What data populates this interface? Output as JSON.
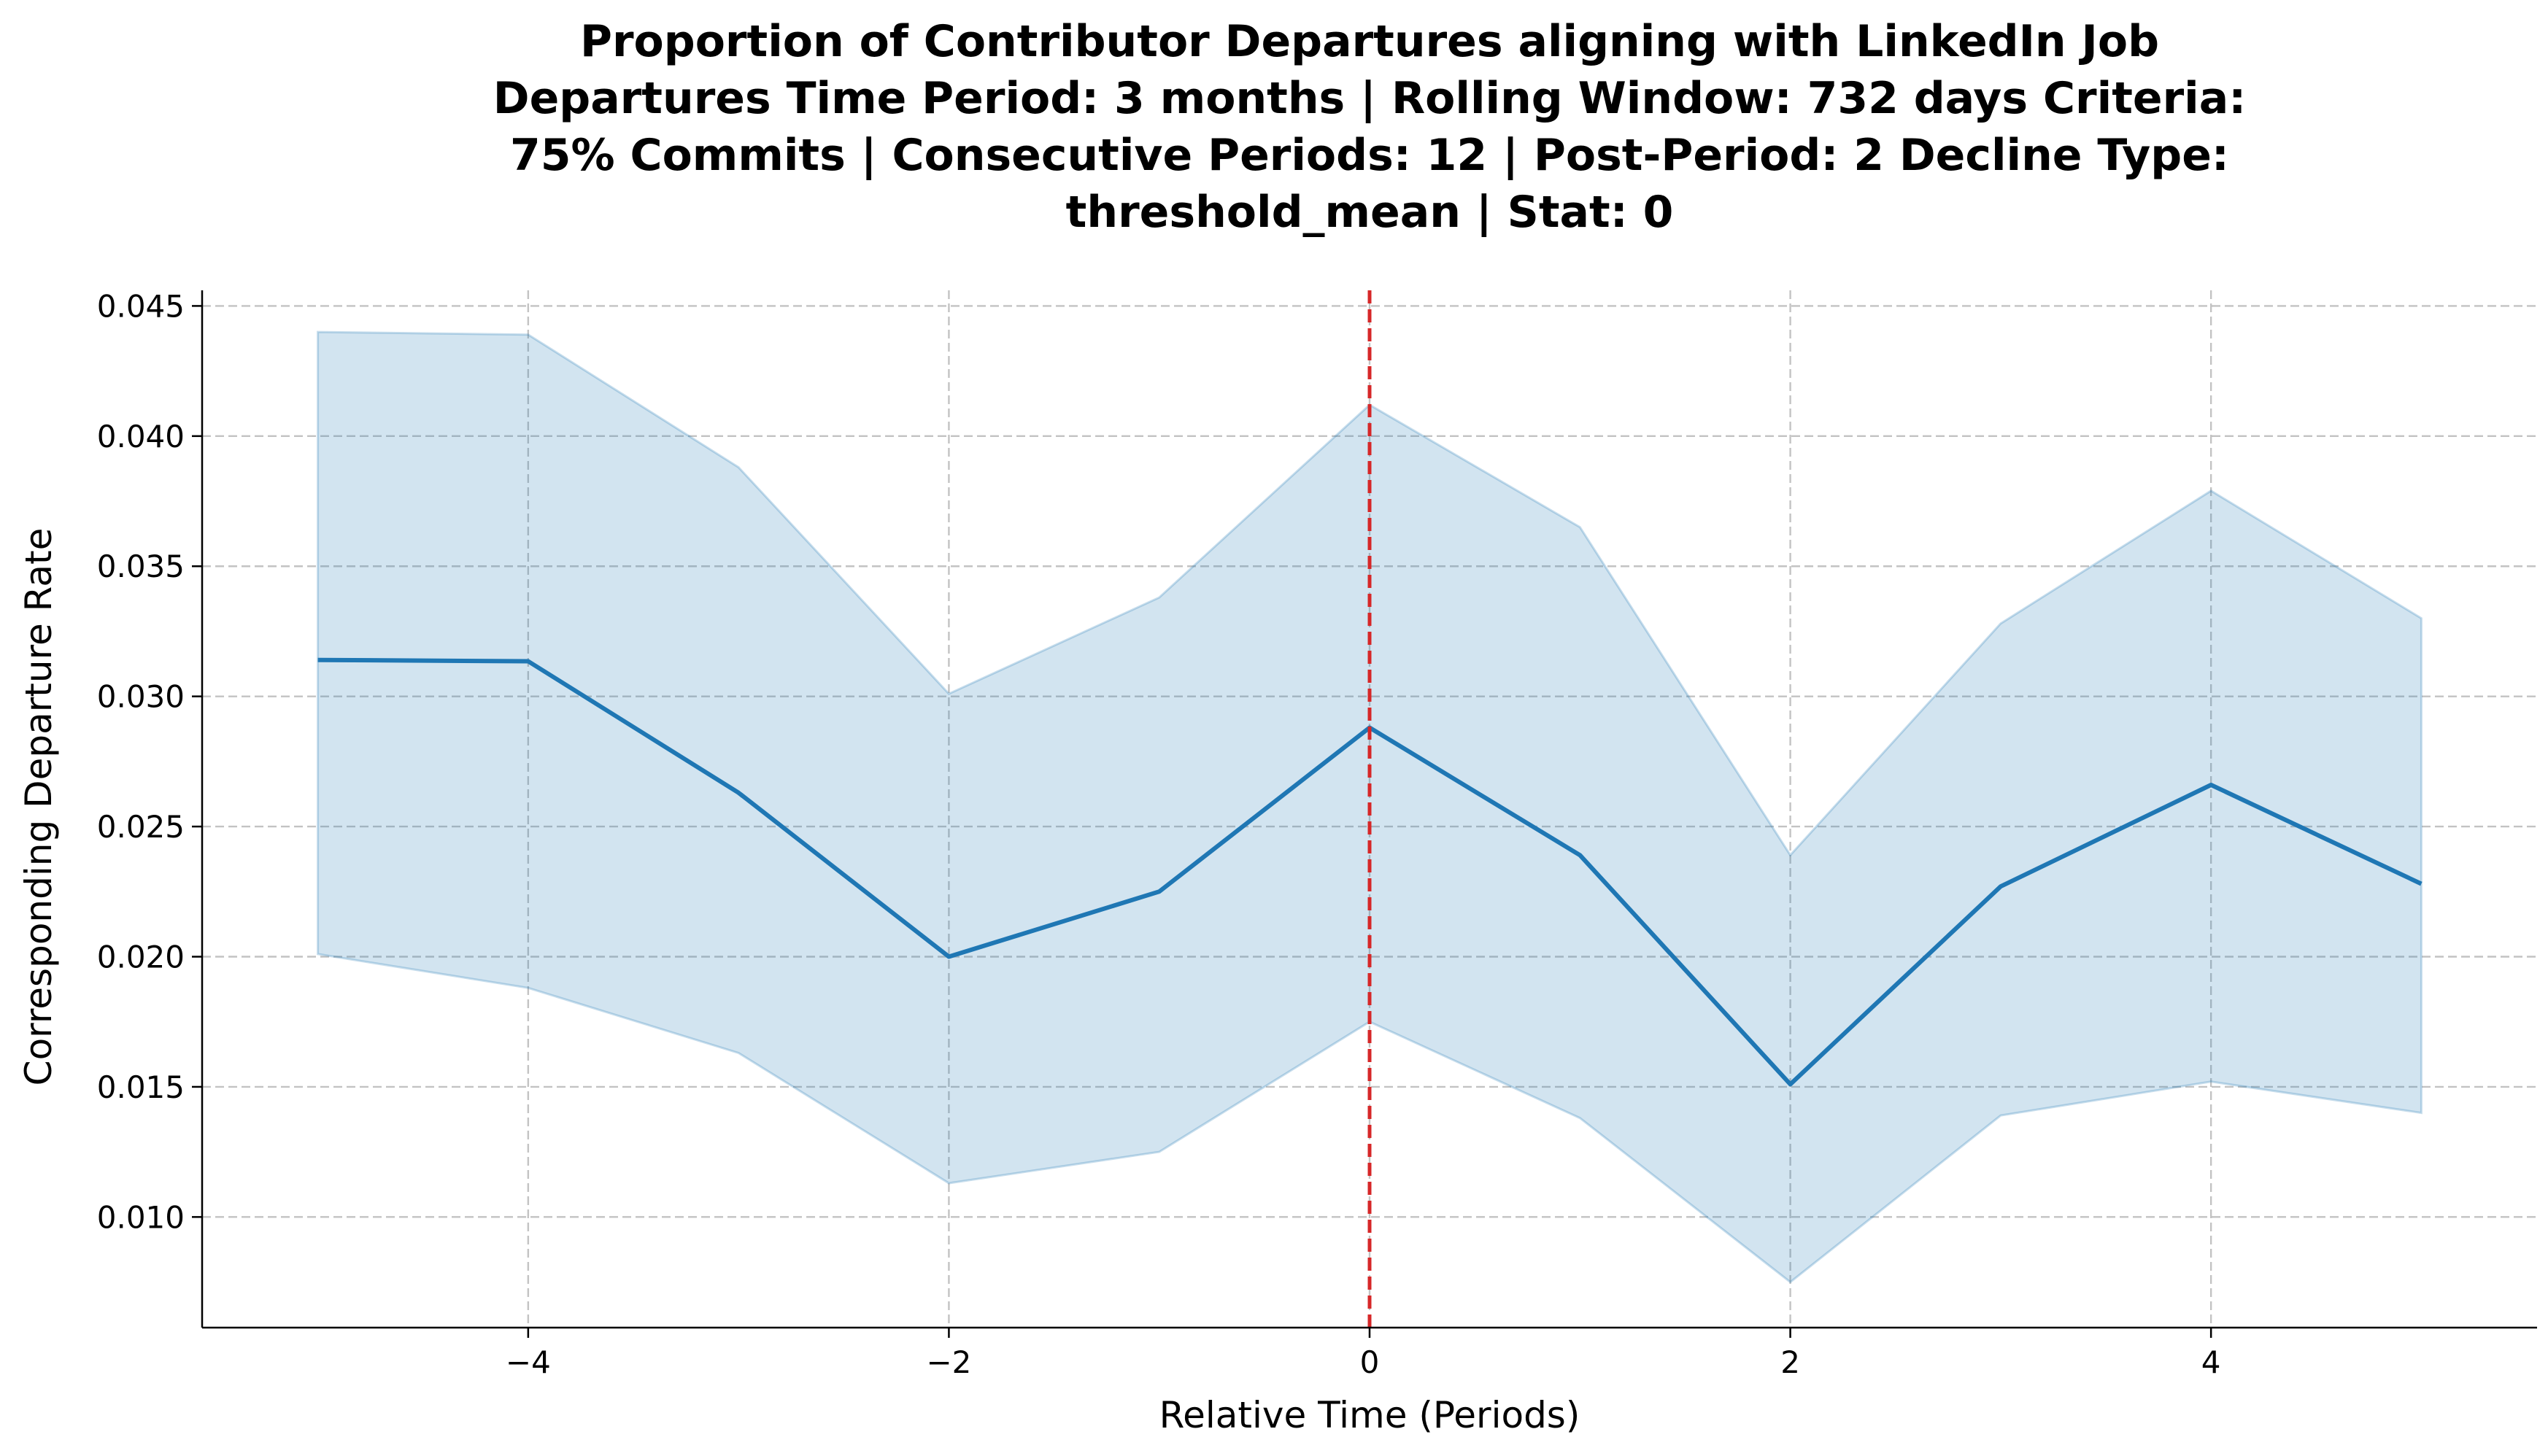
{
  "chart_data": {
    "type": "line",
    "title_lines": [
      "Proportion of Contributor Departures aligning with LinkedIn Job",
      "Departures Time Period: 3 months | Rolling Window: 732 days  Criteria:",
      "75% Commits | Consecutive Periods: 12 | Post-Period: 2 Decline Type:",
      "threshold_mean | Stat: 0"
    ],
    "xlabel": "Relative Time (Periods)",
    "ylabel": "Corresponding Departure Rate",
    "xlim": [
      -5.55,
      5.55
    ],
    "ylim": [
      0.00575,
      0.0456
    ],
    "x_ticks": [
      -4,
      -2,
      0,
      2,
      4
    ],
    "x_tick_labels": [
      "−4",
      "−2",
      "0",
      "2",
      "4"
    ],
    "y_ticks": [
      0.01,
      0.015,
      0.02,
      0.025,
      0.03,
      0.035,
      0.04,
      0.045
    ],
    "y_tick_labels": [
      "0.010",
      "0.015",
      "0.020",
      "0.025",
      "0.030",
      "0.035",
      "0.040",
      "0.045"
    ],
    "grid": true,
    "x": [
      -5,
      -4,
      -3,
      -2,
      -1,
      0,
      1,
      2,
      3,
      4,
      5
    ],
    "series": [
      {
        "name": "departure rate",
        "values": [
          0.0314,
          0.03135,
          0.0263,
          0.02,
          0.0225,
          0.0288,
          0.0239,
          0.0151,
          0.0227,
          0.0266,
          0.0228
        ],
        "ci_lower": [
          0.0201,
          0.0188,
          0.0163,
          0.0113,
          0.0125,
          0.0175,
          0.0138,
          0.0075,
          0.0139,
          0.0152,
          0.014
        ],
        "ci_upper": [
          0.044,
          0.0439,
          0.0388,
          0.0301,
          0.0338,
          0.0412,
          0.0365,
          0.0239,
          0.0328,
          0.0379,
          0.033
        ]
      }
    ],
    "vline": {
      "x": 0,
      "style": "dashed"
    },
    "colors": {
      "line": "#1f77b4",
      "band": "#1f77b4",
      "vline": "#d62728"
    }
  }
}
